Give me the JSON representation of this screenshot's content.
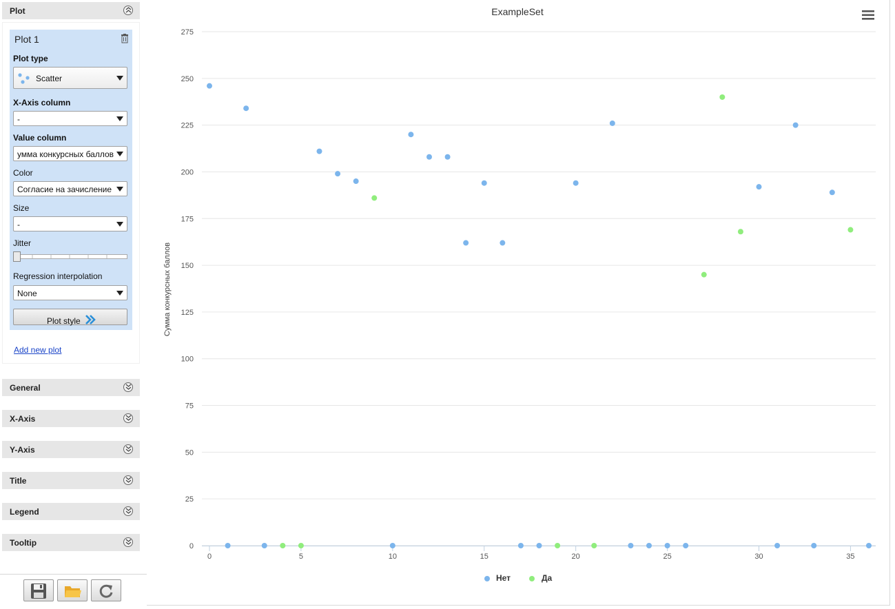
{
  "sidebar": {
    "plot_section": {
      "header": "Plot",
      "plot_title": "Plot 1",
      "plot_type": {
        "label": "Plot type",
        "value": "Scatter"
      },
      "x_axis_column": {
        "label": "X-Axis column",
        "value": "-"
      },
      "value_column": {
        "label": "Value column",
        "value": "умма конкурсных баллов"
      },
      "color": {
        "label": "Color",
        "value": "Согласие на зачисление"
      },
      "size": {
        "label": "Size",
        "value": "-"
      },
      "jitter": {
        "label": "Jitter",
        "value": 0
      },
      "regression": {
        "label": "Regression interpolation",
        "value": "None"
      },
      "plot_style_button": "Plot style",
      "add_new_plot": "Add new plot"
    },
    "sections": [
      "General",
      "X-Axis",
      "Y-Axis",
      "Title",
      "Legend",
      "Tooltip"
    ],
    "toolbar": [
      "save-icon",
      "open-folder-icon",
      "refresh-icon"
    ]
  },
  "chart": {
    "title": "ExampleSet",
    "menu_icon": "hamburger-menu-icon",
    "colors": {
      "Нет": "#7cb5ec",
      "Да": "#90ed7d"
    }
  },
  "chart_data": {
    "type": "scatter",
    "title": "ExampleSet",
    "xlabel": "",
    "ylabel": "Сумма конкурсных баллов",
    "xlim": [
      0,
      36
    ],
    "ylim": [
      0,
      275
    ],
    "x_ticks": [
      0,
      5,
      10,
      15,
      20,
      25,
      30,
      35
    ],
    "y_ticks": [
      0,
      25,
      50,
      75,
      100,
      125,
      150,
      175,
      200,
      225,
      250,
      275
    ],
    "grid": true,
    "legend_position": "bottom-center",
    "series": [
      {
        "name": "Нет",
        "color": "#7cb5ec",
        "points": [
          [
            0,
            246
          ],
          [
            1,
            0
          ],
          [
            2,
            234
          ],
          [
            3,
            0
          ],
          [
            6,
            211
          ],
          [
            7,
            199
          ],
          [
            8,
            195
          ],
          [
            10,
            0
          ],
          [
            11,
            220
          ],
          [
            12,
            208
          ],
          [
            13,
            208
          ],
          [
            14,
            162
          ],
          [
            15,
            194
          ],
          [
            16,
            162
          ],
          [
            17,
            0
          ],
          [
            18,
            0
          ],
          [
            20,
            194
          ],
          [
            22,
            226
          ],
          [
            23,
            0
          ],
          [
            24,
            0
          ],
          [
            25,
            0
          ],
          [
            26,
            0
          ],
          [
            30,
            192
          ],
          [
            31,
            0
          ],
          [
            32,
            225
          ],
          [
            33,
            0
          ],
          [
            34,
            189
          ],
          [
            36,
            0
          ]
        ]
      },
      {
        "name": "Да",
        "color": "#90ed7d",
        "points": [
          [
            4,
            0
          ],
          [
            5,
            0
          ],
          [
            9,
            186
          ],
          [
            19,
            0
          ],
          [
            21,
            0
          ],
          [
            27,
            145
          ],
          [
            28,
            240
          ],
          [
            29,
            168
          ],
          [
            35,
            169
          ]
        ]
      }
    ]
  }
}
